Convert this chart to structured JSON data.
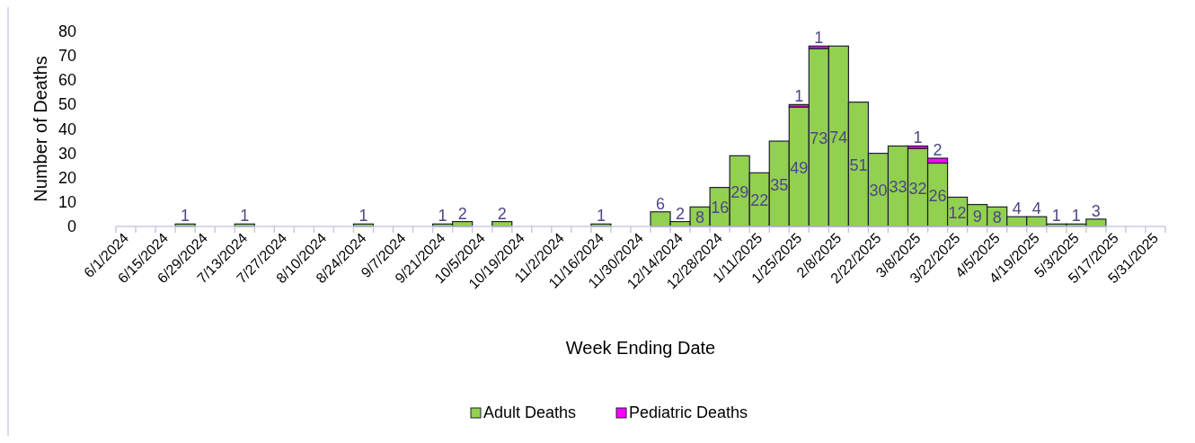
{
  "chart_data": {
    "type": "bar",
    "stacked": true,
    "xlabel": "Week Ending Date",
    "ylabel": "Number of Deaths",
    "categories": [
      "6/1/2024",
      null,
      "6/15/2024",
      null,
      "6/29/2024",
      null,
      "7/13/2024",
      null,
      "7/27/2024",
      null,
      "8/10/2024",
      null,
      "8/24/2024",
      null,
      "9/7/2024",
      null,
      "9/21/2024",
      null,
      "10/5/2024",
      null,
      "10/19/2024",
      null,
      "11/2/2024",
      null,
      "11/16/2024",
      null,
      "11/30/2024",
      null,
      "12/14/2024",
      null,
      "12/28/2024",
      null,
      "1/11/2025",
      null,
      "1/25/2025",
      null,
      "2/8/2025",
      null,
      "2/22/2025",
      null,
      "3/8/2025",
      null,
      "3/22/2025",
      null,
      "4/5/2025",
      null,
      "4/19/2025",
      null,
      "5/3/2025",
      null,
      "5/17/2025",
      null,
      "5/31/2025"
    ],
    "series": [
      {
        "name": "Adult Deaths",
        "color": "#92d050",
        "values": [
          null,
          null,
          null,
          1,
          null,
          null,
          1,
          null,
          null,
          null,
          null,
          null,
          1,
          null,
          null,
          null,
          1,
          2,
          null,
          2,
          null,
          null,
          null,
          null,
          1,
          null,
          null,
          6,
          2,
          8,
          16,
          29,
          22,
          35,
          49,
          73,
          74,
          51,
          30,
          33,
          32,
          26,
          12,
          9,
          8,
          4,
          4,
          1,
          1,
          3,
          null,
          null,
          null
        ]
      },
      {
        "name": "Pediatric Deaths",
        "color": "#ff00ff",
        "values": [
          null,
          null,
          null,
          null,
          null,
          null,
          null,
          null,
          null,
          null,
          null,
          null,
          null,
          null,
          null,
          null,
          null,
          null,
          null,
          null,
          null,
          null,
          null,
          null,
          null,
          null,
          null,
          null,
          null,
          null,
          null,
          null,
          null,
          null,
          1,
          1,
          null,
          null,
          null,
          null,
          1,
          2,
          null,
          null,
          null,
          null,
          null,
          null,
          null,
          null,
          null,
          null,
          null
        ]
      }
    ],
    "ylim": [
      0,
      80
    ],
    "yticks": [
      0,
      10,
      20,
      30,
      40,
      50,
      60,
      70,
      80
    ],
    "grid": false,
    "legend": "bottom",
    "data_labels": true
  }
}
